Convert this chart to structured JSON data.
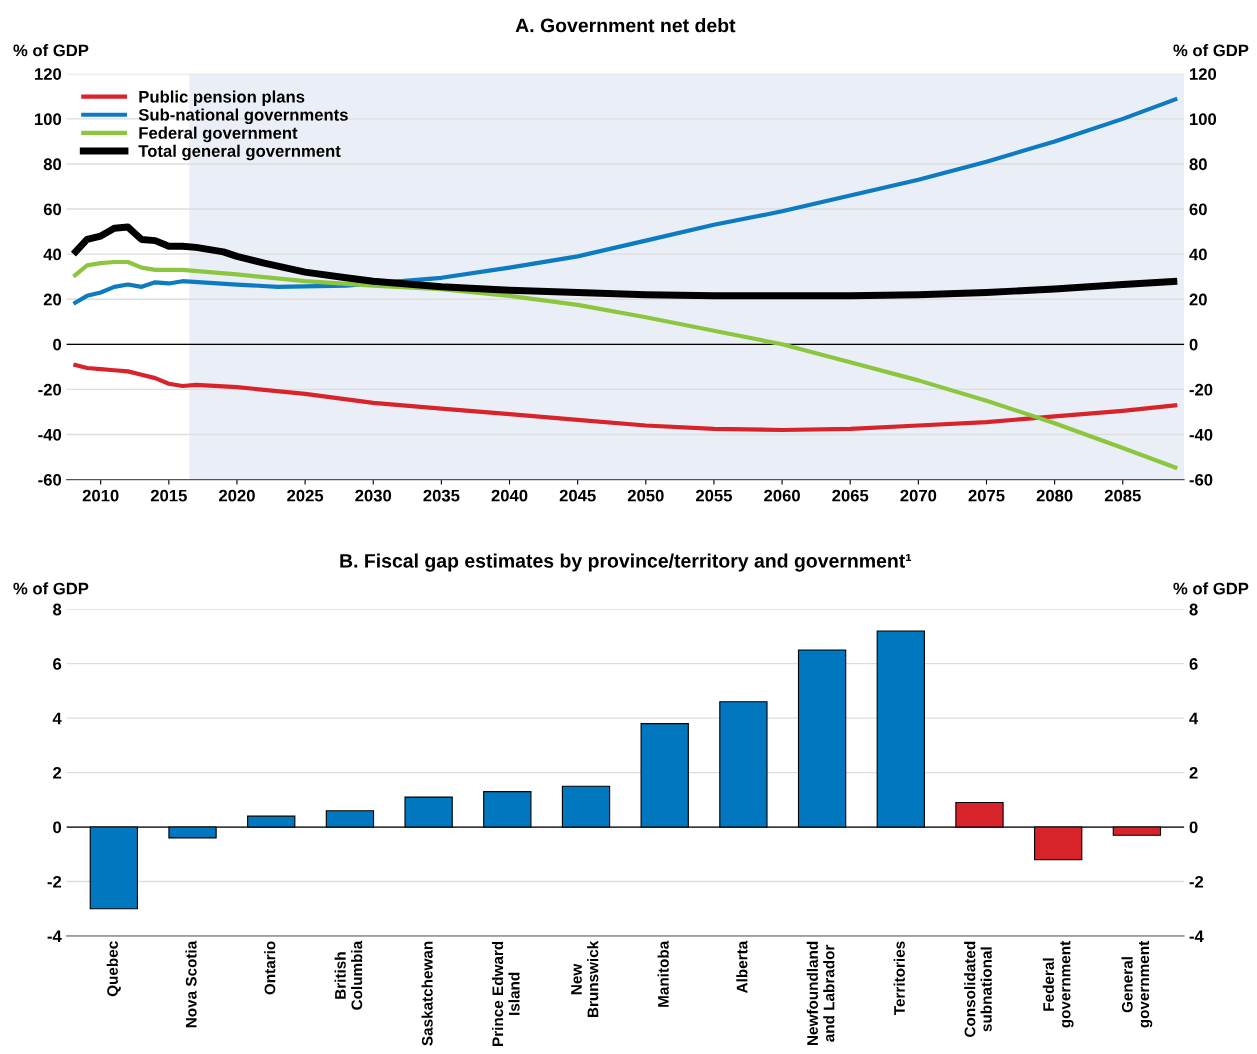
{
  "chart_data": [
    {
      "type": "line",
      "title": "A. Government net debt",
      "ylabel": "% of GDP",
      "y2label": "% of GDP",
      "xlim": [
        2007.5,
        2089.5
      ],
      "xticks": [
        2010,
        2015,
        2020,
        2025,
        2030,
        2035,
        2040,
        2045,
        2050,
        2055,
        2060,
        2065,
        2070,
        2075,
        2080,
        2085
      ],
      "ylim": [
        -60,
        120
      ],
      "yticks": [
        -60,
        -40,
        -20,
        0,
        20,
        40,
        60,
        80,
        100,
        120
      ],
      "y2lim": [
        -60,
        120
      ],
      "y2ticks": [
        -60,
        -40,
        -20,
        0,
        20,
        40,
        60,
        80,
        100,
        120
      ],
      "grid": "y",
      "legend": "top left",
      "line_style": "solid",
      "marker": "none",
      "bands": [
        {
          "axis": "x",
          "from": 2016.5,
          "to": 2089.5,
          "color": "#eaeef6"
        }
      ],
      "ref_lines": [
        {
          "axis": "y",
          "value": 0,
          "color": "#000000"
        }
      ],
      "series": [
        {
          "name": "Public pension plans",
          "color": "#d9232a",
          "x": [
            2008,
            2009,
            2010,
            2011,
            2012,
            2013,
            2014,
            2015,
            2016,
            2017,
            2020,
            2025,
            2030,
            2035,
            2040,
            2045,
            2050,
            2055,
            2060,
            2065,
            2070,
            2075,
            2080,
            2085,
            2089
          ],
          "values": [
            -9,
            -10.5,
            -11,
            -11.5,
            -12,
            -13.5,
            -15,
            -17.5,
            -18.5,
            -18,
            -19,
            -22,
            -26,
            -28.5,
            -31,
            -33.5,
            -36,
            -37.5,
            -38,
            -37.5,
            -36,
            -34.5,
            -32,
            -29.5,
            -27
          ]
        },
        {
          "name": "Sub-national governments",
          "color": "#0c7bc1",
          "x": [
            2008,
            2009,
            2010,
            2011,
            2012,
            2013,
            2014,
            2015,
            2016,
            2020,
            2023,
            2028,
            2035,
            2040,
            2045,
            2050,
            2055,
            2060,
            2065,
            2070,
            2075,
            2080,
            2085,
            2089
          ],
          "values": [
            18,
            21.5,
            23,
            25.5,
            26.5,
            25.5,
            27.5,
            27,
            28,
            26.5,
            25.5,
            26,
            29.5,
            34,
            39,
            46,
            53,
            59,
            66,
            73,
            81,
            90,
            100,
            109
          ]
        },
        {
          "name": "Federal government",
          "color": "#8cc63f",
          "x": [
            2008,
            2009,
            2010,
            2011,
            2012,
            2013,
            2014,
            2015,
            2016,
            2020,
            2025,
            2030,
            2035,
            2040,
            2045,
            2050,
            2055,
            2060,
            2065,
            2070,
            2075,
            2080,
            2085,
            2089
          ],
          "values": [
            30,
            35,
            36,
            36.5,
            36.5,
            34,
            33,
            33,
            33,
            31,
            28,
            26,
            24.5,
            21.5,
            17.5,
            12,
            6,
            0,
            -8,
            -16,
            -25,
            -35,
            -46,
            -55
          ]
        },
        {
          "name": "Total general government",
          "color": "#000000",
          "x": [
            2008,
            2009,
            2010,
            2011,
            2012,
            2013,
            2014,
            2015,
            2016,
            2017,
            2018,
            2019,
            2020,
            2022,
            2025,
            2028,
            2030,
            2035,
            2040,
            2045,
            2050,
            2055,
            2060,
            2065,
            2070,
            2075,
            2080,
            2085,
            2089
          ],
          "values": [
            40,
            46.5,
            48,
            51.5,
            52,
            46.5,
            46,
            43.5,
            43.5,
            43,
            42,
            41,
            39,
            36,
            32,
            29.5,
            28,
            25.5,
            24,
            23,
            22,
            21.5,
            21.5,
            21.5,
            22,
            23,
            24.5,
            26.5,
            28
          ]
        }
      ]
    },
    {
      "type": "bar",
      "title": "B. Fiscal gap estimates by province/territory and government¹",
      "ylabel": "% of GDP",
      "y2label": "% of GDP",
      "categories": [
        "Quebec",
        "Nova Scotia",
        "Ontario",
        "British\nColumbia",
        "Saskatchewan",
        "Prince Edward\nIsland",
        "New\nBrunswick",
        "Manitoba",
        "Alberta",
        "Newfoundland\nand Labrador",
        "Territories",
        "Consolidated\nsubnational",
        "Federal\ngovernment",
        "General\ngovernment"
      ],
      "ylim": [
        -4,
        8
      ],
      "yticks": [
        -4,
        -2,
        0,
        2,
        4,
        6,
        8
      ],
      "y2lim": [
        -4,
        8
      ],
      "y2ticks": [
        -4,
        -2,
        0,
        2,
        4,
        6,
        8
      ],
      "grid": "y",
      "legend": false,
      "ref_lines": [
        {
          "axis": "y",
          "value": 0,
          "color": "#000000"
        }
      ],
      "values": [
        -3,
        -0.4,
        0.4,
        0.6,
        1.1,
        1.3,
        1.5,
        3.8,
        4.6,
        6.5,
        7.2,
        0.9,
        -1.2,
        -0.3
      ],
      "colors": [
        "#0077bf",
        "#0077bf",
        "#0077bf",
        "#0077bf",
        "#0077bf",
        "#0077bf",
        "#0077bf",
        "#0077bf",
        "#0077bf",
        "#0077bf",
        "#0077bf",
        "#d9232a",
        "#d9232a",
        "#d9232a"
      ]
    }
  ]
}
